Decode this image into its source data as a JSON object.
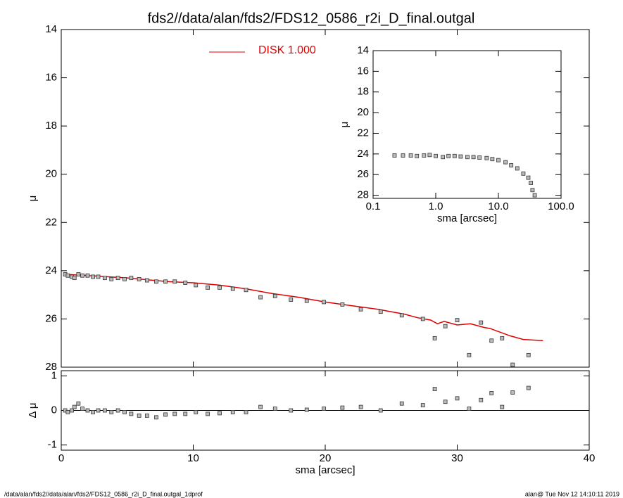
{
  "title": "fds2//data/alan/fds2/FDS12_0586_r2i_D_final.outgal",
  "footer_left": "/data/alan/fds2//data/alan/fds2/FDS12_0586_r2i_D_final.outgal_1dprof",
  "footer_right": "alan@  Tue Nov 12 14:10:11 2019",
  "chart_data": [
    {
      "type": "scatter",
      "ylabel": "μ",
      "xlim": [
        0,
        40
      ],
      "ylim": [
        28,
        14
      ],
      "xticks": [
        0,
        10,
        20,
        30,
        40
      ],
      "xtick_labels": false,
      "yticks": [
        14,
        16,
        18,
        20,
        22,
        24,
        26,
        28
      ],
      "legend": "top-center",
      "series": [
        {
          "name": "DISK  1.000",
          "color": "#e00000",
          "line": true,
          "x": [
            0.3,
            2,
            5,
            8,
            10,
            12,
            14,
            16,
            18,
            20,
            22,
            24,
            26,
            27,
            28,
            28.5,
            29,
            30,
            31,
            32,
            32.5,
            33,
            34,
            35,
            36.5
          ],
          "values": [
            24.15,
            24.2,
            24.3,
            24.45,
            24.5,
            24.6,
            24.75,
            24.95,
            25.1,
            25.3,
            25.45,
            25.6,
            25.8,
            25.95,
            26.05,
            26.2,
            26.1,
            26.25,
            26.2,
            26.35,
            26.4,
            26.5,
            26.7,
            26.85,
            26.9
          ]
        },
        {
          "color": "#333333",
          "line": false,
          "x": [
            0.3,
            0.5,
            0.8,
            1.0,
            1.3,
            1.6,
            2.0,
            2.4,
            2.8,
            3.3,
            3.8,
            4.3,
            4.8,
            5.3,
            5.9,
            6.5,
            7.2,
            7.9,
            8.6,
            9.4,
            10.2,
            11.1,
            12.0,
            13.0,
            14.0,
            15.1,
            16.2,
            17.4,
            18.6,
            19.9,
            21.3,
            22.7,
            24.2,
            25.8,
            27.4,
            28.3,
            29.1,
            30.0,
            30.9,
            31.8,
            32.6,
            33.4,
            34.2,
            35.4
          ],
          "values": [
            24.15,
            24.2,
            24.25,
            24.3,
            24.15,
            24.2,
            24.2,
            24.25,
            24.25,
            24.3,
            24.35,
            24.3,
            24.35,
            24.3,
            24.35,
            24.4,
            24.45,
            24.45,
            24.45,
            24.5,
            24.6,
            24.7,
            24.7,
            24.75,
            24.8,
            25.1,
            25.05,
            25.2,
            25.25,
            25.3,
            25.4,
            25.6,
            25.7,
            25.85,
            26.0,
            26.8,
            26.3,
            26.05,
            27.5,
            26.15,
            26.9,
            26.8,
            27.9,
            27.5
          ]
        }
      ]
    },
    {
      "type": "scatter",
      "ylabel": "Δ μ",
      "xlabel": "sma [arcsec]",
      "xlim": [
        0,
        40
      ],
      "ylim": [
        -1.15,
        1.15
      ],
      "xticks": [
        0,
        10,
        20,
        30,
        40
      ],
      "xtick_labels": true,
      "yticks": [
        -1,
        0,
        1
      ],
      "hline": 0,
      "series": [
        {
          "color": "#333333",
          "line": false,
          "x": [
            0.3,
            0.5,
            0.8,
            1.0,
            1.3,
            1.6,
            2.0,
            2.4,
            2.8,
            3.3,
            3.8,
            4.3,
            4.8,
            5.3,
            5.9,
            6.5,
            7.2,
            7.9,
            8.6,
            9.4,
            10.2,
            11.1,
            12.0,
            13.0,
            14.0,
            15.1,
            16.2,
            17.4,
            18.6,
            19.9,
            21.3,
            22.7,
            24.2,
            25.8,
            27.4,
            28.3,
            29.1,
            30.0,
            30.9,
            31.8,
            32.6,
            33.4,
            34.2,
            35.4
          ],
          "values": [
            0,
            -0.05,
            0,
            0.1,
            0.2,
            0.05,
            0,
            -0.05,
            0,
            0,
            -0.05,
            0,
            -0.05,
            -0.1,
            -0.15,
            -0.15,
            -0.2,
            -0.12,
            -0.1,
            -0.1,
            -0.05,
            -0.1,
            -0.08,
            -0.05,
            -0.05,
            0.1,
            0.05,
            0,
            0.02,
            0.05,
            0.08,
            0.1,
            0,
            0.2,
            0.15,
            0.62,
            0.25,
            0.35,
            0.05,
            0.3,
            0.5,
            0.1,
            0.52,
            0.65
          ]
        }
      ]
    },
    {
      "type": "scatter",
      "ylabel": "μ",
      "xlabel": "sma [arcsec]",
      "xlog": true,
      "xlim": [
        0.1,
        100
      ],
      "ylim": [
        28.3,
        14
      ],
      "xticks": [
        0.1,
        {
          "value": 1,
          "label": "1.0"
        },
        {
          "value": 10,
          "label": "10.0"
        },
        {
          "value": 100,
          "label": "100.0"
        }
      ],
      "xtick_labels": true,
      "yticks": [
        14,
        16,
        18,
        20,
        22,
        24,
        26,
        28
      ],
      "series": [
        {
          "color": "#333333",
          "line": false,
          "x": [
            0.22,
            0.3,
            0.4,
            0.5,
            0.65,
            0.8,
            1.0,
            1.3,
            1.6,
            2.0,
            2.5,
            3.2,
            4,
            5,
            6.5,
            8,
            10,
            13,
            16,
            20,
            25,
            30,
            33,
            35,
            38
          ],
          "values": [
            24.15,
            24.15,
            24.15,
            24.2,
            24.15,
            24.1,
            24.2,
            24.3,
            24.2,
            24.2,
            24.25,
            24.3,
            24.3,
            24.35,
            24.4,
            24.5,
            24.6,
            24.8,
            25.1,
            25.4,
            25.9,
            26.3,
            26.8,
            27.5,
            28.0
          ]
        }
      ]
    }
  ]
}
